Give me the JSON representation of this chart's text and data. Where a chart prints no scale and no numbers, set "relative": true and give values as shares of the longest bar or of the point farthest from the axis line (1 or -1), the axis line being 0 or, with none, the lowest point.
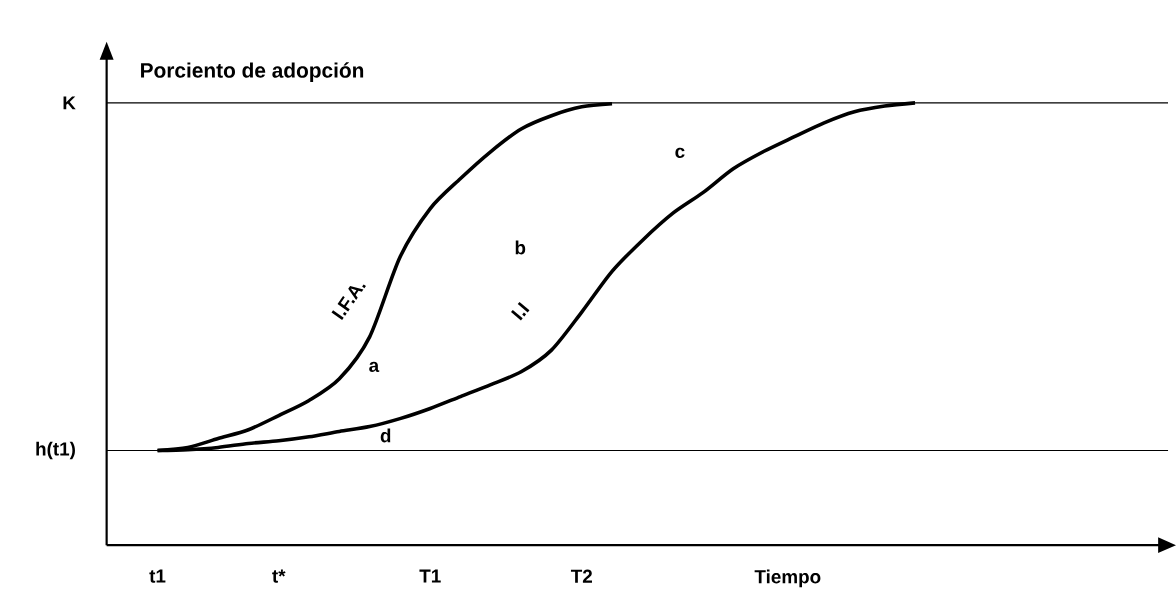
{
  "chart_data": {
    "type": "line",
    "relative": true,
    "ylabel": "Porciento de adopción",
    "xlabel": "Tiempo",
    "categories": [
      "t1",
      null,
      null,
      null,
      "t*",
      null,
      null,
      null,
      null,
      "T1",
      null,
      null,
      null,
      null,
      "T2",
      null,
      null,
      null,
      null,
      null,
      null,
      null,
      null,
      null,
      null,
      null
    ],
    "series": [
      {
        "color": "#000000",
        "values": [
          0.214,
          0.221,
          0.241,
          0.261,
          0.293,
          0.327,
          0.376,
          0.471,
          0.651,
          0.761,
          0.829,
          0.89,
          0.941,
          0.971,
          0.991,
          0.998,
          null,
          null,
          null,
          null,
          null,
          null,
          null,
          null,
          null,
          null
        ]
      },
      {
        "color": "#000000",
        "values": [
          0.214,
          0.216,
          0.221,
          0.23,
          0.236,
          0.245,
          0.257,
          0.268,
          0.286,
          0.309,
          0.336,
          0.363,
          0.392,
          0.441,
          0.527,
          0.619,
          0.689,
          0.75,
          0.797,
          0.851,
          0.89,
          0.923,
          0.955,
          0.98,
          0.993,
          1.0
        ]
      }
    ],
    "ref_lines": [
      {
        "axis": "y",
        "value": 1,
        "label": "K"
      },
      {
        "axis": "y",
        "value": 0.214,
        "label": "h(t1)"
      }
    ],
    "marker": "none",
    "line_style": "solid",
    "annotations": [
      "a",
      "b",
      "c",
      "d",
      "I.F.A.",
      "I.I"
    ]
  }
}
